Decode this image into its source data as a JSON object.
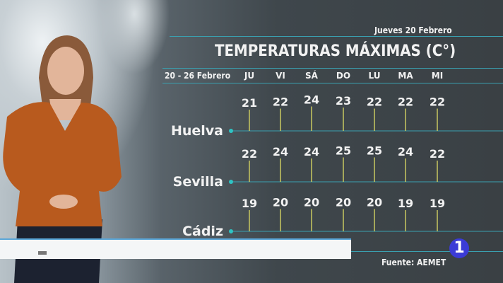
{
  "header": {
    "date": "Jueves 20 Febrero",
    "title": "TEMPERATURAS MÁXIMAS (C°)",
    "range": "20 - 26 Febrero"
  },
  "footer": {
    "source": "Fuente: AEMET",
    "channel_logo": "1"
  },
  "colors": {
    "line": "#3aa0b0",
    "stick": "#c8c860",
    "dot": "#2ec4c4",
    "logo": "#3b3bd6"
  },
  "chart_data": {
    "type": "table",
    "title": "TEMPERATURAS MÁXIMAS (C°)",
    "categories": [
      "JU",
      "VI",
      "SÁ",
      "DO",
      "LU",
      "MA",
      "MI"
    ],
    "series": [
      {
        "name": "Huelva",
        "values": [
          21,
          22,
          24,
          23,
          22,
          22,
          22
        ]
      },
      {
        "name": "Sevilla",
        "values": [
          22,
          24,
          24,
          25,
          25,
          24,
          22
        ]
      },
      {
        "name": "Cádiz",
        "values": [
          19,
          20,
          20,
          20,
          20,
          19,
          19
        ]
      }
    ]
  }
}
